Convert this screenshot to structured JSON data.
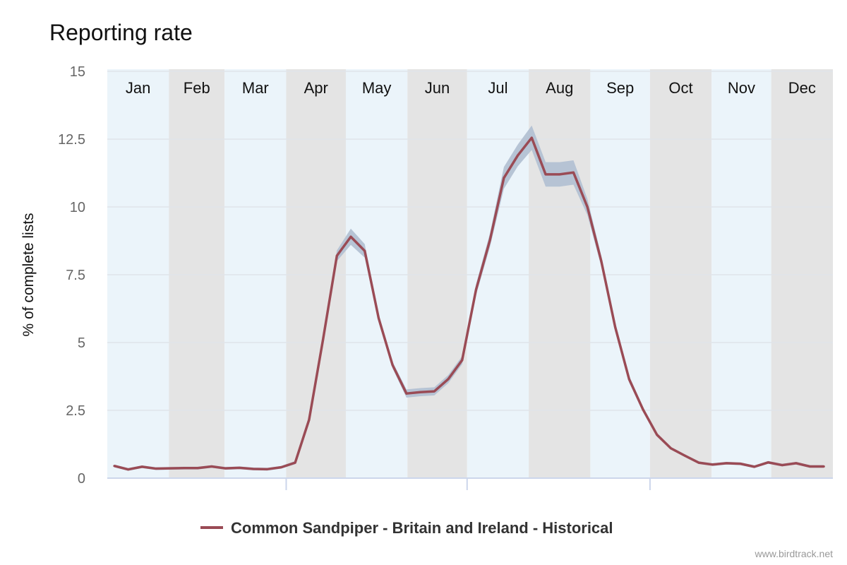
{
  "chart_data": {
    "type": "line",
    "title": "Reporting rate",
    "xlabel": "",
    "ylabel": "% of complete lists",
    "ylim": [
      0,
      15
    ],
    "xlim_days": [
      0,
      365
    ],
    "yticks": [
      "0",
      "2.5",
      "5",
      "7.5",
      "10",
      "12.5",
      "15"
    ],
    "ytick_values": [
      0,
      2.5,
      5,
      7.5,
      10,
      12.5,
      15
    ],
    "months": [
      "Jan",
      "Feb",
      "Mar",
      "Apr",
      "May",
      "Jun",
      "Jul",
      "Aug",
      "Sep",
      "Oct",
      "Nov",
      "Dec"
    ],
    "month_days": [
      31,
      28,
      31,
      30,
      31,
      30,
      31,
      31,
      30,
      31,
      30,
      31
    ],
    "grid": true,
    "legend_position": "bottom-center",
    "series": [
      {
        "name": "Common Sandpiper - Britain and Ireland - Historical",
        "color": "#9a4b55",
        "band_color": "#b3c1d3",
        "x_unit": "week of year",
        "values": [
          0.45,
          0.32,
          0.42,
          0.35,
          0.36,
          0.37,
          0.37,
          0.43,
          0.36,
          0.38,
          0.34,
          0.33,
          0.4,
          0.57,
          2.15,
          5.1,
          8.2,
          8.9,
          8.38,
          5.9,
          4.17,
          3.12,
          3.17,
          3.2,
          3.65,
          4.35,
          6.95,
          8.78,
          11.07,
          11.9,
          12.55,
          11.2,
          11.2,
          11.27,
          10.0,
          8.0,
          5.57,
          3.65,
          2.53,
          1.6,
          1.1,
          0.83,
          0.57,
          0.5,
          0.55,
          0.53,
          0.42,
          0.58,
          0.48,
          0.55,
          0.43,
          0.43
        ],
        "band_halfwidth": [
          0.05,
          0.05,
          0.05,
          0.05,
          0.05,
          0.05,
          0.05,
          0.05,
          0.05,
          0.05,
          0.05,
          0.05,
          0.05,
          0.06,
          0.08,
          0.12,
          0.2,
          0.3,
          0.25,
          0.15,
          0.12,
          0.15,
          0.15,
          0.15,
          0.15,
          0.15,
          0.2,
          0.25,
          0.4,
          0.4,
          0.45,
          0.45,
          0.45,
          0.45,
          0.3,
          0.2,
          0.15,
          0.12,
          0.08,
          0.06,
          0.05,
          0.05,
          0.05,
          0.05,
          0.05,
          0.05,
          0.05,
          0.05,
          0.05,
          0.05,
          0.05,
          0.05
        ]
      }
    ]
  },
  "credit": "www.birdtrack.net"
}
